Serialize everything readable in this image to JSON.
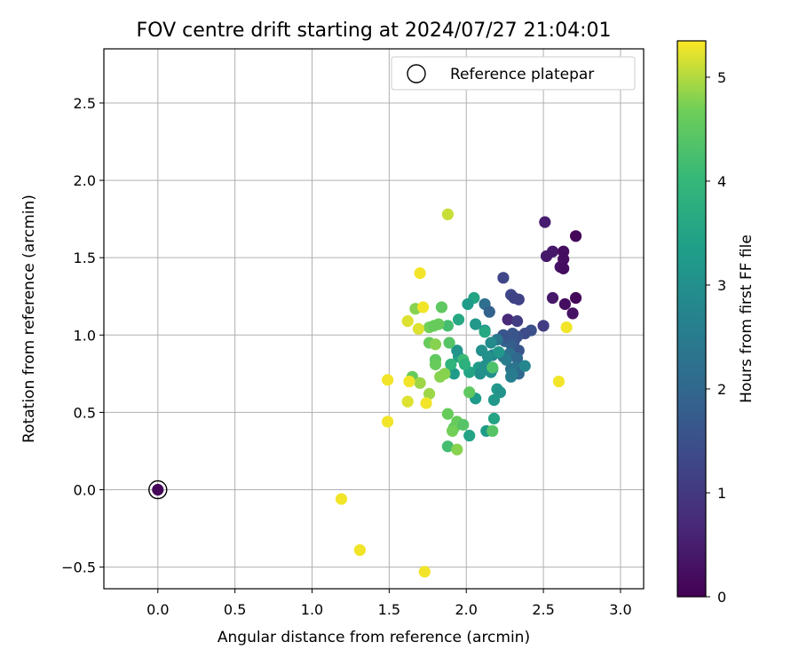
{
  "chart_data": {
    "type": "scatter",
    "title": "FOV centre drift starting at 2024/07/27 21:04:01",
    "xlabel": "Angular distance from reference (arcmin)",
    "ylabel": "Rotation from reference (arcmin)",
    "xlim": [
      -0.35,
      3.15
    ],
    "ylim": [
      -0.64,
      2.85
    ],
    "xticks": [
      "0.0",
      "0.5",
      "1.0",
      "1.5",
      "2.0",
      "2.5",
      "3.0"
    ],
    "yticks": [
      "−0.5",
      "0.0",
      "0.5",
      "1.0",
      "1.5",
      "2.0",
      "2.5"
    ],
    "grid": true,
    "legend": {
      "placement": "top-right",
      "entries": [
        "Reference platepar"
      ]
    },
    "reference_point": {
      "x": 0.0,
      "y": 0.0,
      "hours": 0.1
    },
    "colorbar": {
      "label": "Hours from first FF file",
      "range": [
        0,
        5.35
      ],
      "ticks": [
        "0",
        "1",
        "2",
        "3",
        "4",
        "5"
      ],
      "colormap": "viridis"
    },
    "points": [
      {
        "x": 2.71,
        "y": 1.64,
        "h": 0.1
      },
      {
        "x": 2.51,
        "y": 1.73,
        "h": 0.5
      },
      {
        "x": 2.56,
        "y": 1.54,
        "h": 0.4
      },
      {
        "x": 2.52,
        "y": 1.51,
        "h": 0.4
      },
      {
        "x": 2.63,
        "y": 1.54,
        "h": 0.2
      },
      {
        "x": 2.63,
        "y": 1.49,
        "h": 0.2
      },
      {
        "x": 2.61,
        "y": 1.44,
        "h": 0.3
      },
      {
        "x": 2.63,
        "y": 1.43,
        "h": 0.2
      },
      {
        "x": 2.56,
        "y": 1.24,
        "h": 0.4
      },
      {
        "x": 2.64,
        "y": 1.2,
        "h": 0.2
      },
      {
        "x": 2.71,
        "y": 1.24,
        "h": 0.1
      },
      {
        "x": 2.69,
        "y": 1.14,
        "h": 0.3
      },
      {
        "x": 2.27,
        "y": 1.1,
        "h": 0.7
      },
      {
        "x": 2.24,
        "y": 1.37,
        "h": 1.3
      },
      {
        "x": 2.29,
        "y": 1.26,
        "h": 1.3
      },
      {
        "x": 2.31,
        "y": 1.24,
        "h": 1.2
      },
      {
        "x": 2.34,
        "y": 1.23,
        "h": 1.2
      },
      {
        "x": 2.33,
        "y": 1.09,
        "h": 1.1
      },
      {
        "x": 2.5,
        "y": 1.06,
        "h": 1.1
      },
      {
        "x": 2.42,
        "y": 1.03,
        "h": 1.5
      },
      {
        "x": 2.38,
        "y": 1.01,
        "h": 1.4
      },
      {
        "x": 2.33,
        "y": 0.99,
        "h": 1.5
      },
      {
        "x": 2.31,
        "y": 0.96,
        "h": 1.6
      },
      {
        "x": 2.34,
        "y": 0.9,
        "h": 1.6
      },
      {
        "x": 2.29,
        "y": 0.94,
        "h": 1.8
      },
      {
        "x": 2.25,
        "y": 0.96,
        "h": 1.9
      },
      {
        "x": 2.26,
        "y": 0.98,
        "h": 1.7
      },
      {
        "x": 2.24,
        "y": 1.0,
        "h": 1.6
      },
      {
        "x": 2.3,
        "y": 1.01,
        "h": 1.6
      },
      {
        "x": 2.28,
        "y": 0.88,
        "h": 2.2
      },
      {
        "x": 2.24,
        "y": 0.86,
        "h": 2.4
      },
      {
        "x": 2.26,
        "y": 0.84,
        "h": 2.5
      },
      {
        "x": 2.33,
        "y": 0.85,
        "h": 2.0
      },
      {
        "x": 2.32,
        "y": 0.79,
        "h": 2.3
      },
      {
        "x": 2.34,
        "y": 0.75,
        "h": 2.0
      },
      {
        "x": 2.29,
        "y": 0.78,
        "h": 2.3
      },
      {
        "x": 2.29,
        "y": 0.73,
        "h": 2.6
      },
      {
        "x": 2.3,
        "y": 0.75,
        "h": 2.5
      },
      {
        "x": 2.38,
        "y": 0.8,
        "h": 2.8
      },
      {
        "x": 2.12,
        "y": 1.2,
        "h": 2.2
      },
      {
        "x": 2.15,
        "y": 1.15,
        "h": 1.9
      },
      {
        "x": 2.2,
        "y": 0.97,
        "h": 2.4
      },
      {
        "x": 2.16,
        "y": 0.95,
        "h": 2.9
      },
      {
        "x": 2.12,
        "y": 1.03,
        "h": 3.1
      },
      {
        "x": 2.12,
        "y": 1.02,
        "h": 3.6
      },
      {
        "x": 2.05,
        "y": 1.24,
        "h": 3.5
      },
      {
        "x": 2.01,
        "y": 1.2,
        "h": 3.3
      },
      {
        "x": 2.06,
        "y": 1.07,
        "h": 3.2
      },
      {
        "x": 2.17,
        "y": 0.87,
        "h": 2.7
      },
      {
        "x": 2.14,
        "y": 0.86,
        "h": 3.0
      },
      {
        "x": 2.21,
        "y": 0.89,
        "h": 3.2
      },
      {
        "x": 2.1,
        "y": 0.9,
        "h": 3.0
      },
      {
        "x": 2.08,
        "y": 0.79,
        "h": 3.3
      },
      {
        "x": 2.09,
        "y": 0.75,
        "h": 3.0
      },
      {
        "x": 2.12,
        "y": 0.8,
        "h": 3.0
      },
      {
        "x": 2.17,
        "y": 0.78,
        "h": 3.2
      },
      {
        "x": 2.16,
        "y": 0.76,
        "h": 3.0
      },
      {
        "x": 2.02,
        "y": 0.76,
        "h": 3.5
      },
      {
        "x": 1.95,
        "y": 0.86,
        "h": 3.4
      },
      {
        "x": 1.94,
        "y": 0.9,
        "h": 3.1
      },
      {
        "x": 1.92,
        "y": 0.75,
        "h": 3.3
      },
      {
        "x": 1.95,
        "y": 1.1,
        "h": 3.6
      },
      {
        "x": 1.98,
        "y": 0.84,
        "h": 4.1
      },
      {
        "x": 1.99,
        "y": 0.81,
        "h": 3.8
      },
      {
        "x": 1.9,
        "y": 0.81,
        "h": 3.9
      },
      {
        "x": 2.2,
        "y": 0.65,
        "h": 3.2
      },
      {
        "x": 2.22,
        "y": 0.63,
        "h": 3.1
      },
      {
        "x": 2.18,
        "y": 0.58,
        "h": 3.2
      },
      {
        "x": 2.06,
        "y": 0.59,
        "h": 3.3
      },
      {
        "x": 2.18,
        "y": 0.46,
        "h": 3.5
      },
      {
        "x": 2.13,
        "y": 0.38,
        "h": 3.3
      },
      {
        "x": 2.02,
        "y": 0.35,
        "h": 3.5
      },
      {
        "x": 2.17,
        "y": 0.38,
        "h": 4.4
      },
      {
        "x": 2.17,
        "y": 0.79,
        "h": 4.3
      },
      {
        "x": 2.02,
        "y": 0.63,
        "h": 4.5
      },
      {
        "x": 1.88,
        "y": 0.28,
        "h": 4.2
      },
      {
        "x": 1.88,
        "y": 0.49,
        "h": 4.6
      },
      {
        "x": 1.92,
        "y": 0.4,
        "h": 4.5
      },
      {
        "x": 1.94,
        "y": 0.44,
        "h": 4.6
      },
      {
        "x": 1.98,
        "y": 0.42,
        "h": 4.4
      },
      {
        "x": 1.91,
        "y": 0.38,
        "h": 4.7
      },
      {
        "x": 1.94,
        "y": 0.26,
        "h": 4.8
      },
      {
        "x": 1.84,
        "y": 1.18,
        "h": 4.5
      },
      {
        "x": 1.88,
        "y": 1.06,
        "h": 4.2
      },
      {
        "x": 1.82,
        "y": 1.07,
        "h": 4.6
      },
      {
        "x": 1.76,
        "y": 1.05,
        "h": 4.7
      },
      {
        "x": 1.79,
        "y": 1.06,
        "h": 4.6
      },
      {
        "x": 1.67,
        "y": 1.17,
        "h": 4.8
      },
      {
        "x": 1.76,
        "y": 0.95,
        "h": 4.6
      },
      {
        "x": 1.8,
        "y": 0.94,
        "h": 4.8
      },
      {
        "x": 1.89,
        "y": 0.95,
        "h": 4.4
      },
      {
        "x": 1.8,
        "y": 0.84,
        "h": 4.5
      },
      {
        "x": 1.8,
        "y": 0.81,
        "h": 4.6
      },
      {
        "x": 1.83,
        "y": 0.73,
        "h": 4.8
      },
      {
        "x": 1.86,
        "y": 0.75,
        "h": 4.8
      },
      {
        "x": 1.65,
        "y": 0.73,
        "h": 4.6
      },
      {
        "x": 1.7,
        "y": 0.69,
        "h": 4.9
      },
      {
        "x": 1.76,
        "y": 0.62,
        "h": 4.9
      },
      {
        "x": 1.62,
        "y": 1.09,
        "h": 5.2
      },
      {
        "x": 1.69,
        "y": 1.04,
        "h": 5.2
      },
      {
        "x": 1.72,
        "y": 1.18,
        "h": 5.3
      },
      {
        "x": 1.7,
        "y": 1.4,
        "h": 5.3
      },
      {
        "x": 1.88,
        "y": 1.78,
        "h": 5.1
      },
      {
        "x": 1.63,
        "y": 0.7,
        "h": 5.3
      },
      {
        "x": 1.49,
        "y": 0.71,
        "h": 5.3
      },
      {
        "x": 1.62,
        "y": 0.57,
        "h": 5.2
      },
      {
        "x": 1.74,
        "y": 0.56,
        "h": 5.3
      },
      {
        "x": 1.49,
        "y": 0.44,
        "h": 5.3
      },
      {
        "x": 2.6,
        "y": 0.7,
        "h": 5.3
      },
      {
        "x": 2.65,
        "y": 1.05,
        "h": 5.3
      },
      {
        "x": 1.19,
        "y": -0.06,
        "h": 5.3
      },
      {
        "x": 1.31,
        "y": -0.39,
        "h": 5.3
      },
      {
        "x": 1.73,
        "y": -0.53,
        "h": 5.3
      }
    ]
  }
}
